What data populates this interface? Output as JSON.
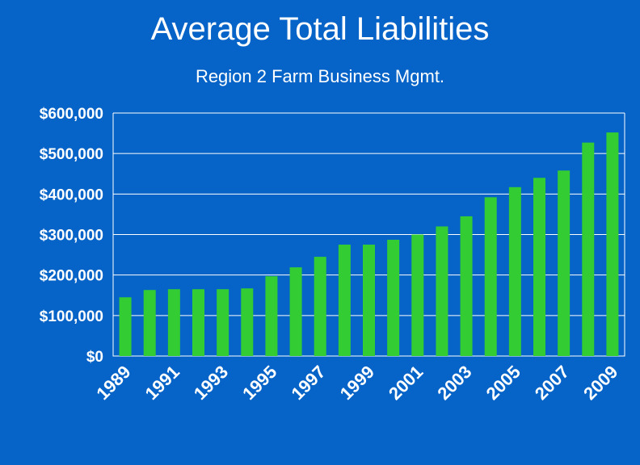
{
  "chart_data": {
    "type": "bar",
    "title": "Average Total Liabilities",
    "subtitle": "Region 2 Farm Business Mgmt.",
    "xlabel": "",
    "ylabel": "",
    "categories": [
      "1989",
      "1990",
      "1991",
      "1992",
      "1993",
      "1994",
      "1995",
      "1996",
      "1997",
      "1998",
      "1999",
      "2000",
      "2001",
      "2002",
      "2003",
      "2004",
      "2005",
      "2006",
      "2007",
      "2008",
      "2009"
    ],
    "values": [
      145000,
      163000,
      165000,
      165000,
      165000,
      167000,
      197000,
      219000,
      245000,
      275000,
      275000,
      287000,
      300000,
      320000,
      345000,
      392000,
      417000,
      440000,
      458000,
      527000,
      552000
    ],
    "x_tick_labels": [
      "1989",
      "1991",
      "1993",
      "1995",
      "1997",
      "1999",
      "2001",
      "2003",
      "2005",
      "2007",
      "2009"
    ],
    "y_tick_labels": [
      "$0",
      "$100,000",
      "$200,000",
      "$300,000",
      "$400,000",
      "$500,000",
      "$600,000"
    ],
    "ylim": [
      0,
      600000
    ],
    "grid": true,
    "colors": {
      "background": "#0663C7",
      "bar": "#33CC33",
      "grid": "#ffffff",
      "text": "#ffffff"
    }
  }
}
